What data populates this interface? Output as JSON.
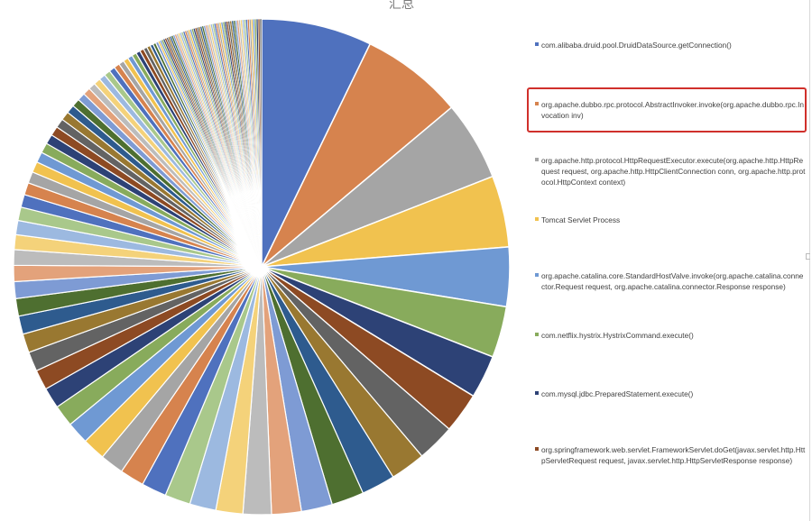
{
  "chart_data": {
    "type": "pie",
    "title": "汇总",
    "slices": [
      {
        "label": "com.alibaba.druid.pool.DruidDataSource.getConnection()",
        "value": 8.2,
        "color": "#4f71be"
      },
      {
        "label": "org.apache.dubbo.rpc.protocol.AbstractInvoker.invoke(org.apache.dubbo.rpc.Invocation inv)",
        "value": 7.6,
        "color": "#d6834e"
      },
      {
        "label": "org.apache.http.protocol.HttpRequestExecutor.execute(org.apache.http.HttpRequest request, org.apache.http.HttpClientConnection conn, org.apache.http.protocol.HttpContext context)",
        "value": 5.9,
        "color": "#a5a5a5"
      },
      {
        "label": "Tomcat Servlet Process",
        "value": 5.3,
        "color": "#f1c24f"
      },
      {
        "label": "org.apache.catalina.core.StandardHostValve.invoke(org.apache.catalina.connector.Request request, org.apache.catalina.connector.Response response)",
        "value": 4.4,
        "color": "#6f99d3"
      },
      {
        "label": "com.netflix.hystrix.HystrixCommand.execute()",
        "value": 3.8,
        "color": "#88ab5c"
      },
      {
        "label": "com.mysql.jdbc.PreparedStatement.execute()",
        "value": 3.2,
        "color": "#2d4276"
      },
      {
        "label": "org.springframework.web.servlet.FrameworkServlet.doGet(javax.servlet.http.HttpServletRequest request, javax.servlet.http.HttpServletResponse response)",
        "value": 3.0,
        "color": "#8d4a23"
      }
    ],
    "other_slice_values": [
      2.8,
      2.6,
      2.5,
      2.4,
      2.3,
      2.2,
      2.1,
      2.0,
      1.95,
      1.9,
      1.85,
      1.8,
      1.75,
      1.7,
      1.65,
      1.6,
      1.55,
      1.5,
      1.45,
      1.4,
      1.35,
      1.3,
      1.25,
      1.2,
      1.15,
      1.1,
      1.05,
      1.0,
      0.95,
      0.9,
      0.85,
      0.8,
      0.78,
      0.75,
      0.72,
      0.7,
      0.68,
      0.65,
      0.62,
      0.6,
      0.58,
      0.55,
      0.52,
      0.5,
      0.48,
      0.46,
      0.44,
      0.42,
      0.4,
      0.38,
      0.36,
      0.34,
      0.32,
      0.3,
      0.28,
      0.26,
      0.24,
      0.22,
      0.2
    ],
    "tail_slice_count": 60,
    "tail_slice_value": 0.13,
    "palette": [
      "#4f71be",
      "#d6834e",
      "#a5a5a5",
      "#f1c24f",
      "#6f99d3",
      "#88ab5c",
      "#2d4276",
      "#8d4a23",
      "#636363",
      "#997831",
      "#2e5b8e",
      "#4e6f30",
      "#7e9bd4",
      "#e3a27b",
      "#bcbcbc",
      "#f4d27a",
      "#9cb9e0",
      "#a9c88b"
    ],
    "legend_position": "right"
  },
  "highlight": {
    "color": "#d0302b",
    "target": "org.apache.dubbo.rpc.protocol.AbstractInvoker.invoke(org.apache.dubbo.rpc.Invocation inv)"
  }
}
